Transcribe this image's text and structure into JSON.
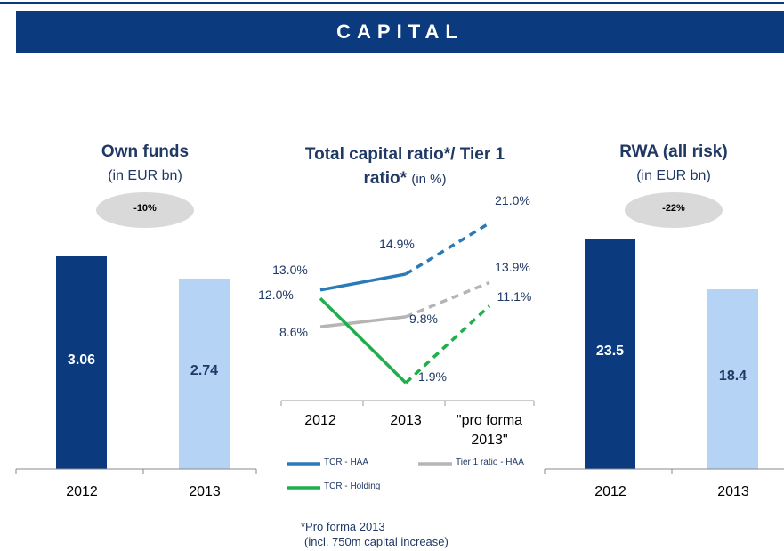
{
  "title": "CAPITAL",
  "chart_data": [
    {
      "type": "bar",
      "title": "Own funds",
      "subtitle": "(in EUR bn)",
      "annotation": "-10%",
      "categories": [
        "2012",
        "2013"
      ],
      "values": [
        3.06,
        2.74
      ],
      "colors": [
        "#0b3a7e",
        "#b4d3f5"
      ]
    },
    {
      "type": "line",
      "title": "Total capital ratio*/ Tier 1 ratio*",
      "subtitle": "(in %)",
      "categories": [
        "2012",
        "2013",
        "\"pro forma 2013\""
      ],
      "series": [
        {
          "name": "TCR - HAA",
          "color": "#2a7ab8",
          "values": [
            13.0,
            14.9,
            21.0
          ],
          "value_labels": [
            "13.0%",
            "14.9%",
            "21.0%"
          ]
        },
        {
          "name": "Tier 1 ratio - HAA",
          "color": "#b5b5b5",
          "values": [
            8.6,
            9.8,
            13.9
          ],
          "value_labels": [
            "8.6%",
            "9.8%",
            "13.9%"
          ]
        },
        {
          "name": "TCR - Holding",
          "color": "#1fae4b",
          "values": [
            12.0,
            1.9,
            11.1
          ],
          "value_labels": [
            "12.0%",
            "1.9%",
            "11.1%"
          ]
        }
      ]
    },
    {
      "type": "bar",
      "title": "RWA (all risk)",
      "subtitle": "(in EUR bn)",
      "annotation": "-22%",
      "categories": [
        "2012",
        "2013"
      ],
      "values": [
        23.5,
        18.4
      ],
      "colors": [
        "#0b3a7e",
        "#b4d3f5"
      ]
    }
  ],
  "footnote": [
    "*Pro forma 2013",
    "(incl. 750m capital increase)"
  ]
}
